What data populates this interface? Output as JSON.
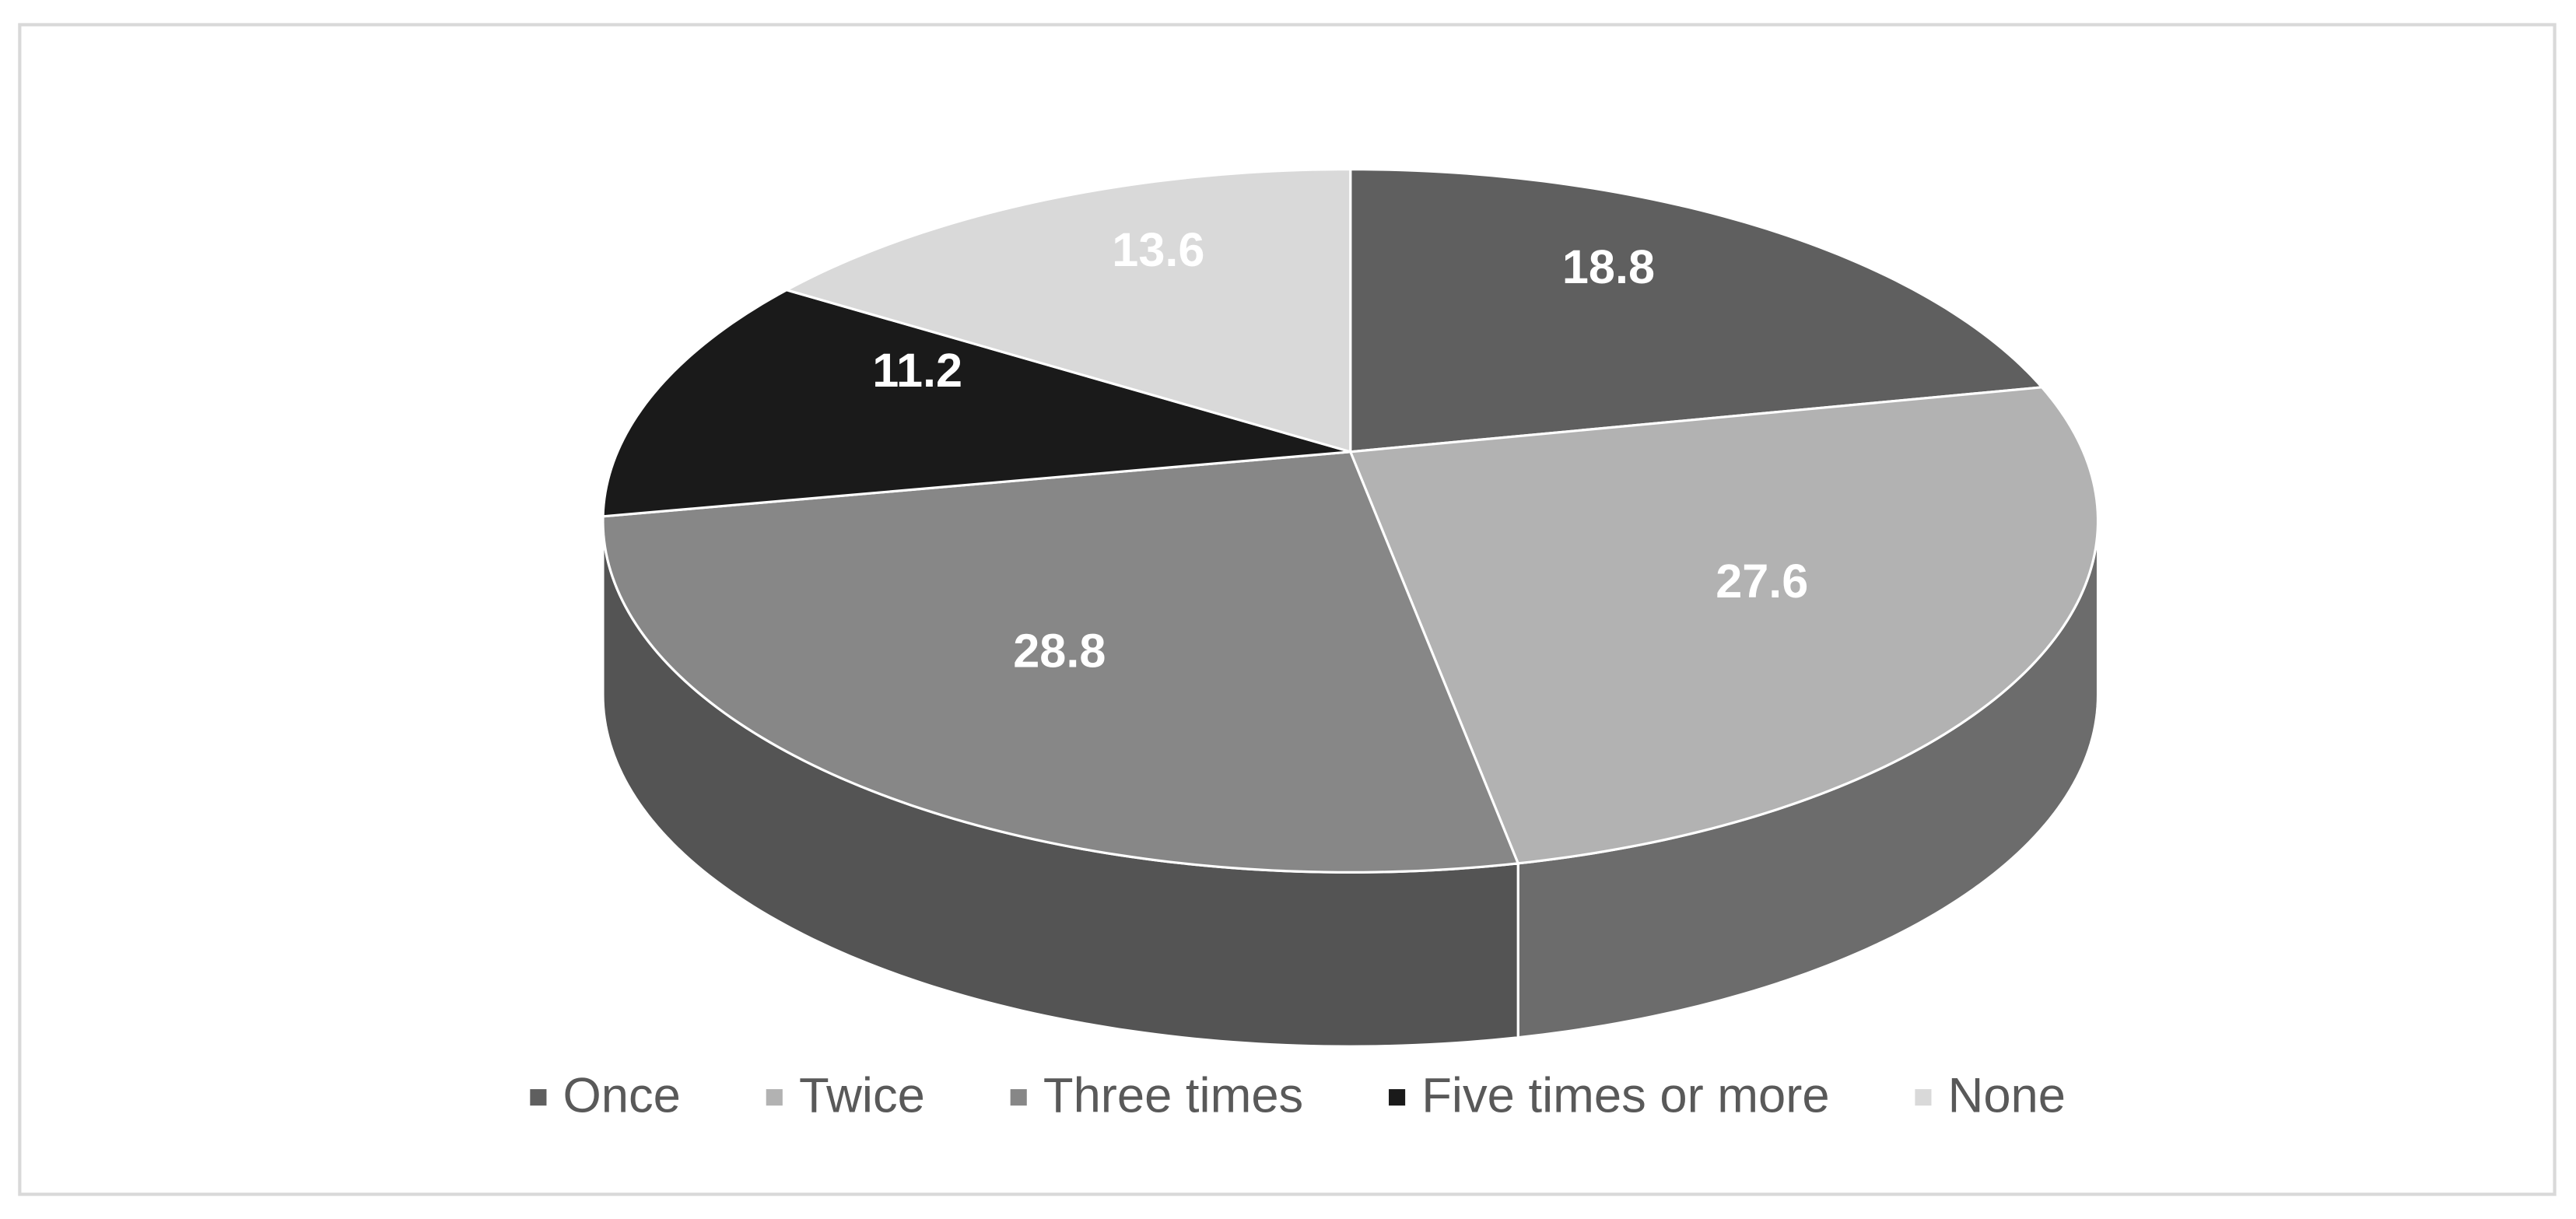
{
  "chart_data": {
    "type": "pie",
    "categories": [
      "Once",
      "Twice",
      "Three times",
      "Five times or more",
      "None"
    ],
    "values": [
      18.8,
      27.6,
      28.8,
      11.2,
      13.6
    ],
    "colors": [
      "#5f5f5f",
      "#b2b2b2",
      "#878787",
      "#1a1a1a",
      "#d9d9d9"
    ],
    "legend": "bottom"
  }
}
